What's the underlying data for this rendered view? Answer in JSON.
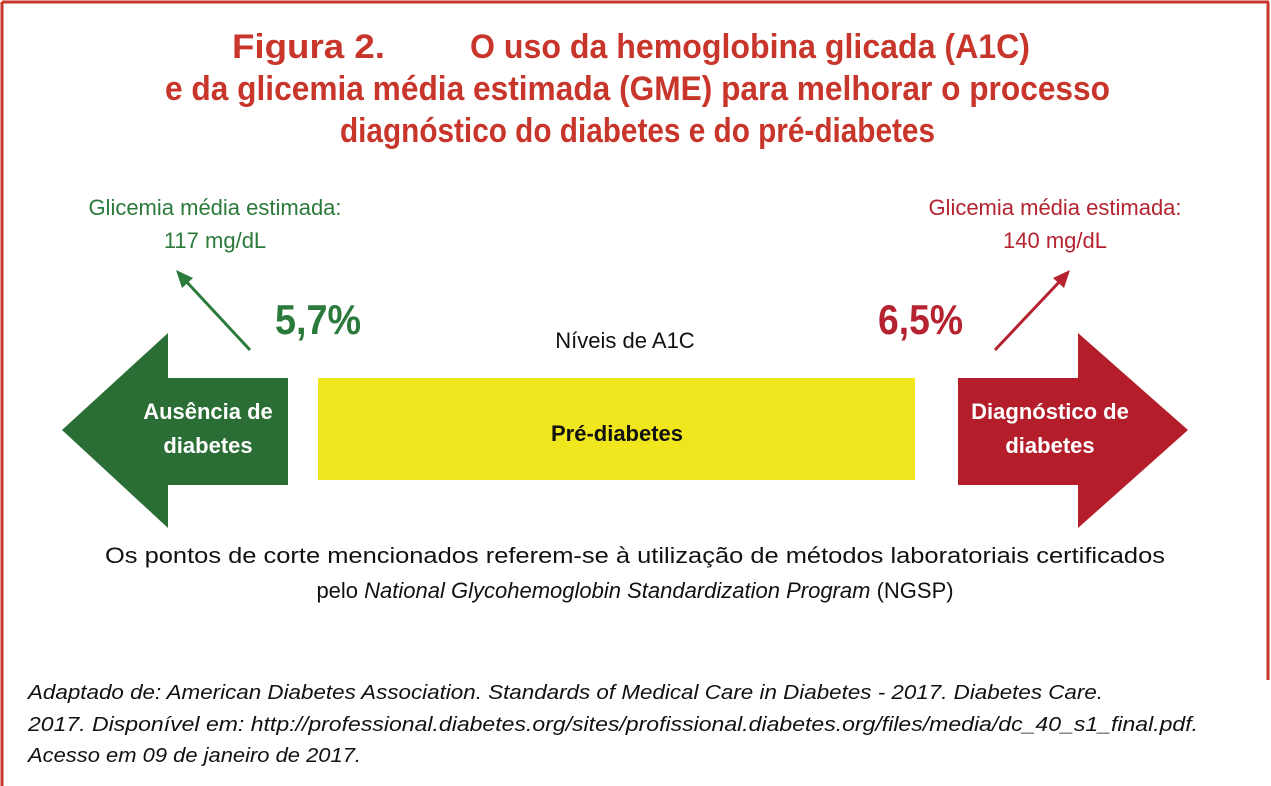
{
  "title": {
    "label": "Figura 2.",
    "lines": [
      "O uso da hemoglobina glicada (A1C)",
      "e da glicemia média estimada (GME) para melhorar o processo",
      "diagnóstico do diabetes e do pré-diabetes"
    ]
  },
  "left": {
    "heading": "Glicemia média estimada:",
    "value": "117 mg/dL",
    "cutoff": "5,7%",
    "arrow_lines": [
      "Ausência de",
      "diabetes"
    ]
  },
  "right": {
    "heading": "Glicemia média estimada:",
    "value": "140 mg/dL",
    "cutoff": "6,5%",
    "arrow_lines": [
      "Diagnóstico de",
      "diabetes"
    ]
  },
  "axis_label": "Níveis de A1C",
  "middle": "Pré-diabetes",
  "note": {
    "line1": "Os pontos de corte mencionados referem-se à utilização de métodos laboratoriais certificados",
    "line2_start": "pelo",
    "line2_italic": "National Glycohemoglobin Standardization Program",
    "line2_end": "(NGSP)"
  },
  "source": [
    "Adaptado de: American Diabetes Association. Standards of Medical Care in Diabetes - 2017. Diabetes Care.",
    "2017. Disponível em: http://professional.diabetes.org/sites/profissional.diabetes.org/files/media/dc_40_s1_final.pdf.",
    "Acesso em 09 de janeiro de 2017."
  ]
}
